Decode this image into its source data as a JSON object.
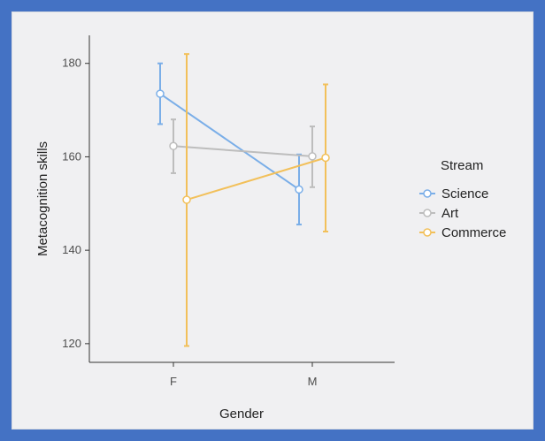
{
  "chart_data": {
    "type": "line",
    "xlabel": "Gender",
    "ylabel": "Metacognition skills",
    "categories": [
      "F",
      "M"
    ],
    "ylim": [
      116,
      186
    ],
    "yticks": [
      120,
      140,
      160,
      180
    ],
    "grid": false,
    "legend": {
      "title": "Stream",
      "placement": "right"
    },
    "series": [
      {
        "name": "Science",
        "color": "#7aaee8",
        "values": [
          173.5,
          153.0
        ],
        "error_low": [
          167.0,
          145.5
        ],
        "error_high": [
          180.0,
          160.5
        ]
      },
      {
        "name": "Art",
        "color": "#bdbdbd",
        "values": [
          162.3,
          160.1
        ],
        "error_low": [
          156.5,
          153.5
        ],
        "error_high": [
          168.0,
          166.5
        ]
      },
      {
        "name": "Commerce",
        "color": "#f2c05a",
        "values": [
          150.8,
          159.8
        ],
        "error_low": [
          119.5,
          144.0
        ],
        "error_high": [
          182.0,
          175.5
        ]
      }
    ]
  }
}
